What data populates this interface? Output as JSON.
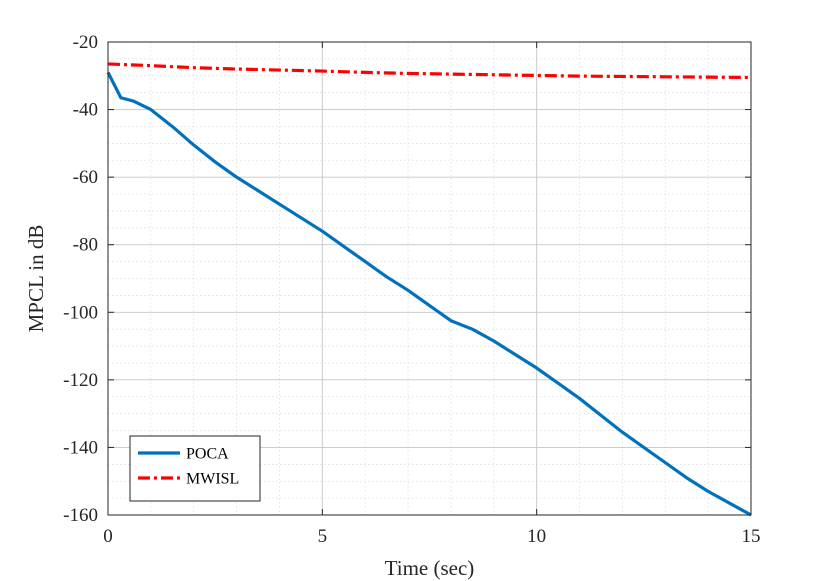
{
  "chart_data": {
    "type": "line",
    "title": "",
    "xlabel": "Time (sec)",
    "ylabel": "MPCL in dB",
    "xlim": [
      0,
      15
    ],
    "ylim": [
      -160,
      -20
    ],
    "xticks": [
      0,
      5,
      10,
      15
    ],
    "yticks": [
      -20,
      -40,
      -60,
      -80,
      -100,
      -120,
      -140,
      -160
    ],
    "grid": true,
    "minor_grid": true,
    "legend_position": "bottom-left",
    "series": [
      {
        "name": "POCA",
        "color": "#0072BD",
        "style": "solid",
        "x": [
          0,
          0.3,
          0.6,
          1.0,
          1.5,
          2.0,
          2.5,
          3.0,
          3.5,
          4.0,
          4.5,
          5.0,
          5.5,
          6.0,
          6.5,
          7.0,
          7.5,
          8.0,
          8.5,
          9.0,
          9.5,
          10.0,
          10.5,
          11.0,
          11.5,
          12.0,
          12.5,
          13.0,
          13.5,
          14.0,
          14.5,
          15.0
        ],
        "y": [
          -29,
          -36.5,
          -37.5,
          -40,
          -45,
          -50.5,
          -55.5,
          -60,
          -64,
          -68,
          -72,
          -76,
          -80.5,
          -85,
          -89.5,
          -93.5,
          -98,
          -102.5,
          -105,
          -108.5,
          -112.5,
          -116.5,
          -121,
          -125.5,
          -130.5,
          -135.5,
          -140,
          -144.5,
          -149,
          -153,
          -156.5,
          -160
        ]
      },
      {
        "name": "MWISL",
        "color": "#FF0000",
        "style": "dashdot",
        "x": [
          0,
          1,
          2,
          3,
          4,
          5,
          6,
          7,
          8,
          9,
          10,
          11,
          12,
          13,
          14,
          15
        ],
        "y": [
          -26.5,
          -27,
          -27.6,
          -28,
          -28.3,
          -28.6,
          -29,
          -29.3,
          -29.5,
          -29.7,
          -29.9,
          -30.1,
          -30.2,
          -30.3,
          -30.4,
          -30.5
        ]
      }
    ]
  }
}
